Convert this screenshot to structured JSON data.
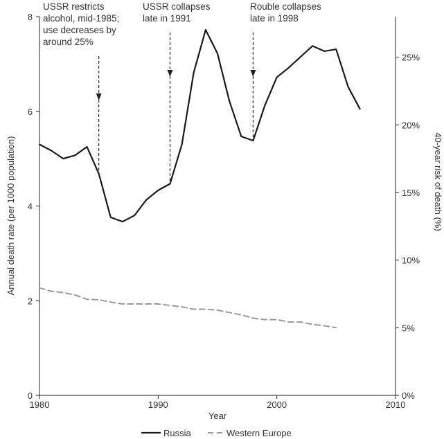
{
  "chart_data": {
    "type": "line",
    "xlabel": "Year",
    "ylabel": "Annual death rate (per 1000 population)",
    "y2label": "40-year risk of death (%)",
    "xlim": [
      1980,
      2010
    ],
    "ylim": [
      0,
      8
    ],
    "y2lim": [
      0,
      0.28
    ],
    "x_ticks": [
      "1980",
      "1990",
      "2000",
      "2010"
    ],
    "x_tick_values": [
      1980,
      1990,
      2000,
      2010
    ],
    "y_ticks": [
      "0",
      "2",
      "4",
      "6",
      "8"
    ],
    "y_tick_values": [
      0,
      2,
      4,
      6,
      8
    ],
    "y2_ticks": [
      "0%",
      "5%",
      "10%",
      "15%",
      "20%",
      "25%"
    ],
    "y2_tick_values": [
      0,
      0.05,
      0.1,
      0.15,
      0.2,
      0.25
    ],
    "grid": false,
    "legend_position": "bottom",
    "series": [
      {
        "name": "Russia",
        "style": "solid",
        "color": "#1a1a1a",
        "x": [
          1980,
          1981,
          1982,
          1983,
          1984,
          1985,
          1986,
          1987,
          1988,
          1989,
          1990,
          1991,
          1992,
          1993,
          1994,
          1995,
          1996,
          1997,
          1998,
          1999,
          2000,
          2001,
          2002,
          2003,
          2004,
          2005,
          2006,
          2007
        ],
        "values": [
          5.3,
          5.17,
          5.0,
          5.07,
          5.25,
          4.68,
          3.76,
          3.67,
          3.8,
          4.13,
          4.33,
          4.47,
          5.3,
          6.82,
          7.72,
          7.22,
          6.22,
          5.47,
          5.38,
          6.13,
          6.72,
          6.92,
          7.15,
          7.38,
          7.27,
          7.31,
          6.52,
          6.05
        ]
      },
      {
        "name": "Western Europe",
        "style": "dashed",
        "color": "#999999",
        "x": [
          1980,
          1981,
          1982,
          1983,
          1984,
          1985,
          1986,
          1987,
          1988,
          1989,
          1990,
          1991,
          1992,
          1993,
          1994,
          1995,
          1996,
          1997,
          1998,
          1999,
          2000,
          2001,
          2002,
          2003,
          2004,
          2005
        ],
        "values": [
          2.27,
          2.2,
          2.17,
          2.12,
          2.03,
          2.02,
          1.97,
          1.93,
          1.93,
          1.93,
          1.93,
          1.9,
          1.87,
          1.82,
          1.82,
          1.8,
          1.75,
          1.7,
          1.63,
          1.6,
          1.6,
          1.55,
          1.55,
          1.5,
          1.47,
          1.43
        ]
      }
    ],
    "annotations": [
      {
        "x": 1985,
        "lines": [
          "USSR restricts",
          "alcohol, mid-1985;",
          "use decreases by",
          "around 25%"
        ]
      },
      {
        "x": 1991,
        "lines": [
          "USSR collapses",
          "late in 1991"
        ]
      },
      {
        "x": 1998,
        "lines": [
          "Rouble collapses",
          "late in 1998"
        ]
      }
    ]
  }
}
